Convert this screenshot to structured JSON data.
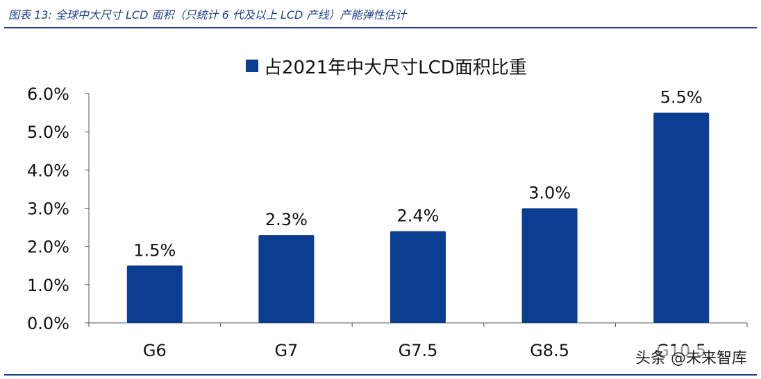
{
  "header": {
    "title": "图表 13: 全球中大尺寸 LCD 面积（只统计 6 代及以上 LCD 产线）产能弹性估计"
  },
  "watermark": "头条 @未来智库",
  "colors": {
    "bar": "#0b3d91",
    "accent": "#1f3f8a"
  },
  "chart_data": {
    "type": "bar",
    "categories": [
      "G6",
      "G7",
      "G7.5",
      "G8.5",
      "G10.5"
    ],
    "series": [
      {
        "name": "占2021年中大尺寸LCD面积比重",
        "values": [
          0.015,
          0.023,
          0.024,
          0.03,
          0.055
        ]
      }
    ],
    "data_labels": [
      "1.5%",
      "2.3%",
      "2.4%",
      "3.0%",
      "5.5%"
    ],
    "yticks": [
      "0.0%",
      "1.0%",
      "2.0%",
      "3.0%",
      "4.0%",
      "5.0%",
      "6.0%"
    ],
    "ylim": [
      0,
      0.06
    ],
    "legend_position": "top-center",
    "grid": false
  }
}
